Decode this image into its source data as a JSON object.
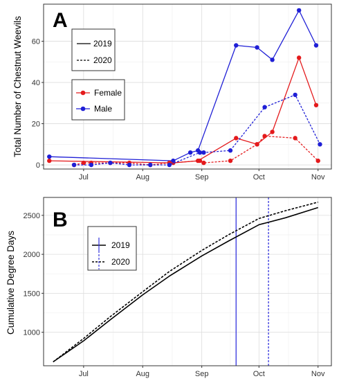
{
  "chart_data": [
    {
      "panel": "A",
      "type": "line",
      "ylabel": "Total Number of Chestnut Weevils",
      "xlabel": "",
      "x_ticks": [
        {
          "date": "2020-07-01",
          "label": "Jul"
        },
        {
          "date": "2020-08-01",
          "label": "Aug"
        },
        {
          "date": "2020-09-01",
          "label": "Sep"
        },
        {
          "date": "2020-10-01",
          "label": "Oct"
        },
        {
          "date": "2020-11-01",
          "label": "Nov"
        }
      ],
      "xlim": [
        "2020-06-10",
        "2020-11-08"
      ],
      "y_ticks": [
        0,
        20,
        40,
        60
      ],
      "ylim": [
        -2,
        78
      ],
      "grid": true,
      "legend_year": {
        "placement": "top-left",
        "entries": [
          {
            "label": "2019",
            "linestyle": "solid"
          },
          {
            "label": "2020",
            "linestyle": "dashed"
          }
        ]
      },
      "legend_sex": {
        "placement": "left",
        "entries": [
          {
            "label": "Female",
            "color": "#e41a1c"
          },
          {
            "label": "Male",
            "color": "#1f1fd6"
          }
        ]
      },
      "series": [
        {
          "sex": "Female",
          "year": "2019",
          "color": "#e41a1c",
          "linestyle": "solid",
          "points": [
            [
              "2020-06-13",
              2
            ],
            [
              "2020-08-17",
              1
            ],
            [
              "2020-08-30",
              2
            ],
            [
              "2020-09-19",
              13
            ],
            [
              "2020-09-30",
              10
            ],
            [
              "2020-10-08",
              16
            ],
            [
              "2020-10-22",
              52
            ],
            [
              "2020-10-31",
              29
            ]
          ]
        },
        {
          "sex": "Male",
          "year": "2019",
          "color": "#1f1fd6",
          "linestyle": "solid",
          "points": [
            [
              "2020-06-13",
              4
            ],
            [
              "2020-08-17",
              2
            ],
            [
              "2020-08-26",
              6
            ],
            [
              "2020-08-30",
              7
            ],
            [
              "2020-09-19",
              58
            ],
            [
              "2020-09-30",
              57
            ],
            [
              "2020-10-08",
              51
            ],
            [
              "2020-10-22",
              75
            ],
            [
              "2020-10-31",
              58
            ]
          ]
        },
        {
          "sex": "Female",
          "year": "2020",
          "color": "#e41a1c",
          "linestyle": "dashed",
          "points": [
            [
              "2020-06-26",
              0
            ],
            [
              "2020-07-01",
              1
            ],
            [
              "2020-07-05",
              1
            ],
            [
              "2020-07-15",
              1
            ],
            [
              "2020-07-25",
              1
            ],
            [
              "2020-08-05",
              0
            ],
            [
              "2020-08-15",
              1
            ],
            [
              "2020-08-31",
              2
            ],
            [
              "2020-09-02",
              1
            ],
            [
              "2020-09-16",
              2
            ],
            [
              "2020-09-30",
              10
            ],
            [
              "2020-10-04",
              14
            ],
            [
              "2020-10-20",
              13
            ],
            [
              "2020-11-01",
              2
            ]
          ]
        },
        {
          "sex": "Male",
          "year": "2020",
          "color": "#1f1fd6",
          "linestyle": "dashed",
          "points": [
            [
              "2020-06-26",
              0
            ],
            [
              "2020-07-05",
              0
            ],
            [
              "2020-07-15",
              1
            ],
            [
              "2020-07-25",
              0
            ],
            [
              "2020-08-05",
              0
            ],
            [
              "2020-08-15",
              0
            ],
            [
              "2020-08-31",
              6
            ],
            [
              "2020-09-02",
              6
            ],
            [
              "2020-09-16",
              7
            ],
            [
              "2020-10-04",
              28
            ],
            [
              "2020-10-20",
              34
            ],
            [
              "2020-11-02",
              10
            ]
          ]
        }
      ]
    },
    {
      "panel": "B",
      "type": "line",
      "ylabel": "Cumulative Degree Days",
      "xlabel": "",
      "x_ticks": [
        {
          "date": "2020-07-01",
          "label": "Jul"
        },
        {
          "date": "2020-08-01",
          "label": "Aug"
        },
        {
          "date": "2020-09-01",
          "label": "Sep"
        },
        {
          "date": "2020-10-01",
          "label": "Oct"
        },
        {
          "date": "2020-11-01",
          "label": "Nov"
        }
      ],
      "xlim": [
        "2020-06-10",
        "2020-11-08"
      ],
      "y_ticks": [
        1000,
        1500,
        2000,
        2500
      ],
      "ylim": [
        570,
        2730
      ],
      "grid": true,
      "legend": {
        "placement": "top-left",
        "entries": [
          {
            "label": "2019",
            "linestyle": "solid"
          },
          {
            "label": "2020",
            "linestyle": "dashed"
          }
        ]
      },
      "series": [
        {
          "year": "2019",
          "linestyle": "solid",
          "color": "#000000",
          "points": [
            [
              "2020-06-15",
              620
            ],
            [
              "2020-07-01",
              890
            ],
            [
              "2020-07-15",
              1160
            ],
            [
              "2020-08-01",
              1480
            ],
            [
              "2020-08-15",
              1720
            ],
            [
              "2020-09-01",
              1980
            ],
            [
              "2020-09-15",
              2170
            ],
            [
              "2020-10-01",
              2380
            ],
            [
              "2020-10-15",
              2470
            ],
            [
              "2020-11-01",
              2600
            ]
          ]
        },
        {
          "year": "2020",
          "linestyle": "dashed",
          "color": "#000000",
          "points": [
            [
              "2020-06-15",
              620
            ],
            [
              "2020-07-01",
              920
            ],
            [
              "2020-07-15",
              1200
            ],
            [
              "2020-08-01",
              1520
            ],
            [
              "2020-08-15",
              1780
            ],
            [
              "2020-09-01",
              2050
            ],
            [
              "2020-09-15",
              2250
            ],
            [
              "2020-10-01",
              2460
            ],
            [
              "2020-10-15",
              2560
            ],
            [
              "2020-11-01",
              2670
            ]
          ]
        }
      ],
      "vlines": [
        {
          "date": "2020-09-19",
          "color": "#3333dd",
          "linestyle": "solid",
          "year": "2019"
        },
        {
          "date": "2020-10-06",
          "color": "#3333dd",
          "linestyle": "dashed",
          "year": "2020"
        }
      ]
    }
  ]
}
